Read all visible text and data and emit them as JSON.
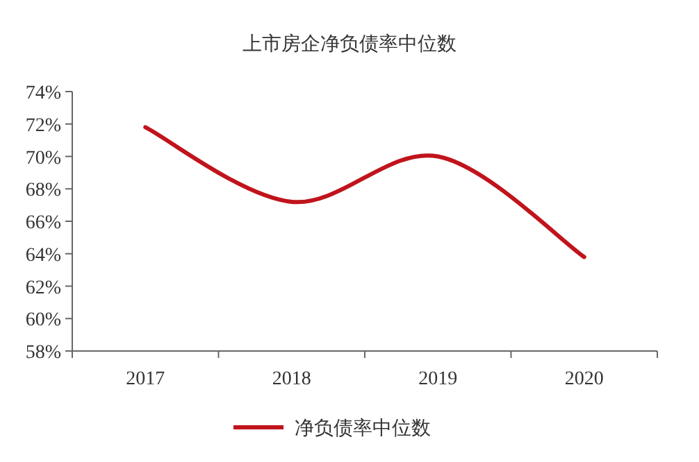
{
  "chart_data": {
    "type": "line",
    "title": "上市房企净负债率中位数",
    "categories": [
      "2017",
      "2018",
      "2019",
      "2020"
    ],
    "series": [
      {
        "name": "净负债率中位数",
        "color": "#c0141c",
        "values": [
          71.8,
          67.2,
          70.0,
          63.8
        ]
      }
    ],
    "ylim": [
      58,
      74
    ],
    "yticks": [
      {
        "value": 58,
        "label": "58%"
      },
      {
        "value": 60,
        "label": "60%"
      },
      {
        "value": 62,
        "label": "62%"
      },
      {
        "value": 64,
        "label": "64%"
      },
      {
        "value": 66,
        "label": "66%"
      },
      {
        "value": 68,
        "label": "68%"
      },
      {
        "value": 70,
        "label": "70%"
      },
      {
        "value": 72,
        "label": "72%"
      },
      {
        "value": 74,
        "label": "74%"
      }
    ],
    "legend": "bottom",
    "grid": false,
    "marker": "none",
    "line_style": "solid"
  }
}
